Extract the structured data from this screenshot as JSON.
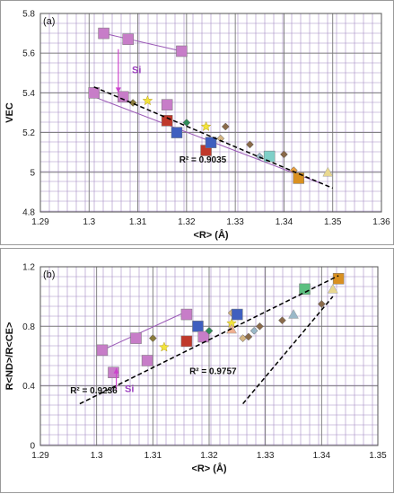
{
  "chart_data": [
    {
      "type": "scatter",
      "panel_label": "(a)",
      "xlabel": "<R> (Å)",
      "ylabel": "VEC",
      "xlim": [
        1.29,
        1.36
      ],
      "ylim": [
        4.8,
        5.8
      ],
      "xticks": [
        "1.29",
        "1.3",
        "1.31",
        "1.32",
        "1.33",
        "1.34",
        "1.35",
        "1.36"
      ],
      "yticks": [
        "4.8",
        "5",
        "5.2",
        "5.4",
        "5.6",
        "5.8"
      ],
      "grid": true,
      "annotations": [
        "R² = 0.9035",
        "Si"
      ],
      "points": [
        {
          "x": 1.303,
          "y": 5.7,
          "color": "#c77dc8",
          "marker": "square"
        },
        {
          "x": 1.308,
          "y": 5.67,
          "color": "#c77dc8",
          "marker": "square"
        },
        {
          "x": 1.319,
          "y": 5.61,
          "color": "#c77dc8",
          "marker": "square"
        },
        {
          "x": 1.301,
          "y": 5.4,
          "color": "#c77dc8",
          "marker": "square"
        },
        {
          "x": 1.307,
          "y": 5.38,
          "color": "#c77dc8",
          "marker": "square"
        },
        {
          "x": 1.309,
          "y": 5.35,
          "color": "#8a7a3a",
          "marker": "diamond"
        },
        {
          "x": 1.312,
          "y": 5.36,
          "color": "#f2e33b",
          "marker": "star"
        },
        {
          "x": 1.316,
          "y": 5.34,
          "color": "#c77dc8",
          "marker": "square"
        },
        {
          "x": 1.316,
          "y": 5.26,
          "color": "#c0392b",
          "marker": "square"
        },
        {
          "x": 1.318,
          "y": 5.2,
          "color": "#3f5fbf",
          "marker": "square"
        },
        {
          "x": 1.32,
          "y": 5.25,
          "color": "#2e8b57",
          "marker": "diamond"
        },
        {
          "x": 1.324,
          "y": 5.23,
          "color": "#f2e33b",
          "marker": "star"
        },
        {
          "x": 1.324,
          "y": 5.11,
          "color": "#c0392b",
          "marker": "square"
        },
        {
          "x": 1.325,
          "y": 5.15,
          "color": "#3f5fbf",
          "marker": "square"
        },
        {
          "x": 1.327,
          "y": 5.17,
          "color": "#d4b483",
          "marker": "diamond"
        },
        {
          "x": 1.328,
          "y": 5.23,
          "color": "#8a6a4a",
          "marker": "diamond"
        },
        {
          "x": 1.333,
          "y": 5.14,
          "color": "#8a6a4a",
          "marker": "diamond"
        },
        {
          "x": 1.335,
          "y": 5.08,
          "color": "#9ab8c8",
          "marker": "diamond"
        },
        {
          "x": 1.337,
          "y": 5.08,
          "color": "#7fd0c8",
          "marker": "square"
        },
        {
          "x": 1.34,
          "y": 5.09,
          "color": "#8a6a4a",
          "marker": "diamond"
        },
        {
          "x": 1.342,
          "y": 5.01,
          "color": "#e8a040",
          "marker": "diamond"
        },
        {
          "x": 1.343,
          "y": 4.97,
          "color": "#d99020",
          "marker": "square"
        },
        {
          "x": 1.349,
          "y": 5.0,
          "color": "#e8d890",
          "marker": "triangle"
        }
      ],
      "solid_lines": [
        {
          "x": [
            1.303,
            1.319
          ],
          "y": [
            5.7,
            5.61
          ],
          "color": "#9b59b6"
        },
        {
          "x": [
            1.301,
            1.348
          ],
          "y": [
            5.38,
            4.94
          ],
          "color": "#9b59b6"
        }
      ],
      "dashed_lines": [
        {
          "x": [
            1.301,
            1.35
          ],
          "y": [
            5.43,
            4.92
          ],
          "color": "#000000"
        }
      ],
      "arrow": {
        "x": 1.306,
        "y_from": 5.62,
        "y_to": 5.4,
        "color": "#cc44cc"
      }
    },
    {
      "type": "scatter",
      "panel_label": "(b)",
      "xlabel": "<R> (Å)",
      "ylabel": "R<ND>/R<CE>",
      "xlim": [
        1.29,
        1.35
      ],
      "ylim": [
        0,
        1.2
      ],
      "xticks": [
        "1.29",
        "1.3",
        "1.31",
        "1.32",
        "1.33",
        "1.34",
        "1.35"
      ],
      "yticks": [
        "0",
        "0.4",
        "0.8",
        "1.2"
      ],
      "grid": true,
      "annotations": [
        "R² = 0.9236",
        "R² = 0.9757",
        "Si"
      ],
      "points": [
        {
          "x": 1.301,
          "y": 0.64,
          "color": "#c77dc8",
          "marker": "square"
        },
        {
          "x": 1.303,
          "y": 0.49,
          "color": "#c77dc8",
          "marker": "square"
        },
        {
          "x": 1.307,
          "y": 0.72,
          "color": "#c77dc8",
          "marker": "square"
        },
        {
          "x": 1.309,
          "y": 0.57,
          "color": "#c77dc8",
          "marker": "square"
        },
        {
          "x": 1.31,
          "y": 0.72,
          "color": "#8a7a3a",
          "marker": "diamond"
        },
        {
          "x": 1.312,
          "y": 0.66,
          "color": "#f2e33b",
          "marker": "star"
        },
        {
          "x": 1.316,
          "y": 0.88,
          "color": "#c77dc8",
          "marker": "square"
        },
        {
          "x": 1.316,
          "y": 0.7,
          "color": "#c0392b",
          "marker": "square"
        },
        {
          "x": 1.318,
          "y": 0.8,
          "color": "#3f5fbf",
          "marker": "square"
        },
        {
          "x": 1.319,
          "y": 0.73,
          "color": "#c77dc8",
          "marker": "square"
        },
        {
          "x": 1.32,
          "y": 0.77,
          "color": "#2e8b57",
          "marker": "diamond"
        },
        {
          "x": 1.324,
          "y": 0.89,
          "color": "#d4b483",
          "marker": "diamond"
        },
        {
          "x": 1.324,
          "y": 0.82,
          "color": "#f2e33b",
          "marker": "star"
        },
        {
          "x": 1.324,
          "y": 0.78,
          "color": "#f0b090",
          "marker": "triangle"
        },
        {
          "x": 1.325,
          "y": 0.88,
          "color": "#3f5fbf",
          "marker": "square"
        },
        {
          "x": 1.326,
          "y": 0.72,
          "color": "#d4b483",
          "marker": "diamond"
        },
        {
          "x": 1.327,
          "y": 0.73,
          "color": "#8a6a4a",
          "marker": "diamond"
        },
        {
          "x": 1.328,
          "y": 0.77,
          "color": "#9ab8c8",
          "marker": "diamond"
        },
        {
          "x": 1.329,
          "y": 0.8,
          "color": "#8a6a4a",
          "marker": "diamond"
        },
        {
          "x": 1.333,
          "y": 0.84,
          "color": "#8a6a4a",
          "marker": "diamond"
        },
        {
          "x": 1.335,
          "y": 0.88,
          "color": "#9ab8c8",
          "marker": "triangle"
        },
        {
          "x": 1.337,
          "y": 1.05,
          "color": "#5cbf80",
          "marker": "square"
        },
        {
          "x": 1.34,
          "y": 0.95,
          "color": "#8a6a4a",
          "marker": "diamond"
        },
        {
          "x": 1.342,
          "y": 1.05,
          "color": "#e8d890",
          "marker": "triangle"
        },
        {
          "x": 1.343,
          "y": 1.12,
          "color": "#d99020",
          "marker": "square"
        }
      ],
      "solid_lines": [
        {
          "x": [
            1.301,
            1.316
          ],
          "y": [
            0.64,
            0.9
          ],
          "color": "#9b59b6"
        }
      ],
      "dashed_lines": [
        {
          "x": [
            1.297,
            1.343
          ],
          "y": [
            0.28,
            1.14
          ],
          "color": "#000000"
        },
        {
          "x": [
            1.326,
            1.342
          ],
          "y": [
            0.28,
            1.0
          ],
          "color": "#000000"
        }
      ],
      "arrow": {
        "x": 1.3035,
        "y_from": 0.37,
        "y_to": 0.52,
        "color": "#cc44cc"
      }
    }
  ]
}
